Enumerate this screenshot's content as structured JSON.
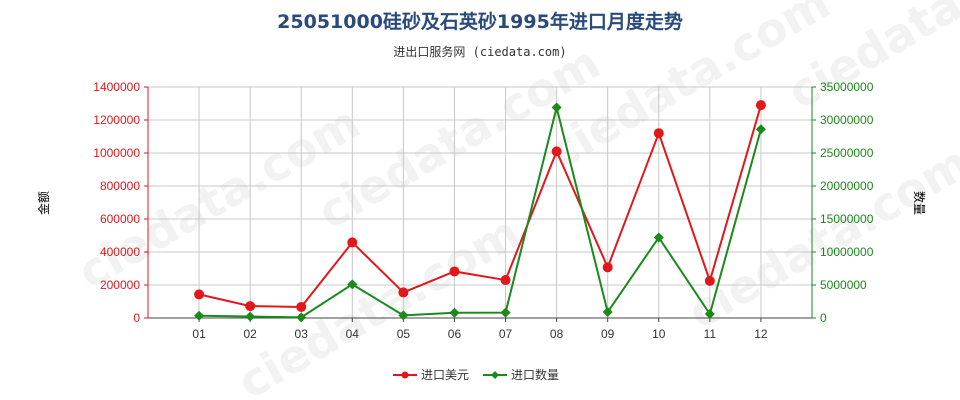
{
  "chart_data": {
    "type": "line",
    "title": "25051000硅砂及石英砂1995年进口月度走势",
    "subtitle": "进出口服务网 (ciedata.com)",
    "categories": [
      "01",
      "02",
      "03",
      "04",
      "05",
      "06",
      "07",
      "08",
      "09",
      "10",
      "11",
      "12"
    ],
    "y_left": {
      "label": "金额",
      "ylim": [
        0,
        1400000
      ],
      "ticks": [
        "0",
        "200000",
        "400000",
        "600000",
        "800000",
        "1000000",
        "1200000",
        "1400000"
      ],
      "color": "#e0181b"
    },
    "y_right": {
      "label": "数量",
      "ylim": [
        0,
        35000000
      ],
      "ticks": [
        "0",
        "5000000",
        "10000000",
        "15000000",
        "20000000",
        "25000000",
        "30000000",
        "35000000"
      ],
      "color": "#1a8a1a"
    },
    "series": [
      {
        "name": "进口美元",
        "axis": "left",
        "color": "#e0181b",
        "marker": "circle",
        "values": [
          143000,
          72000,
          67000,
          458000,
          155000,
          282000,
          230000,
          1010000,
          307000,
          1120000,
          225000,
          1290000
        ]
      },
      {
        "name": "进口数量",
        "axis": "right",
        "color": "#1a8a1a",
        "marker": "diamond",
        "values": [
          350000,
          220000,
          100000,
          5100000,
          400000,
          800000,
          820000,
          31900000,
          900000,
          12200000,
          600000,
          28600000
        ]
      }
    ],
    "grid": true,
    "legend_position": "bottom-center"
  },
  "watermark_text": "ciedata.com"
}
